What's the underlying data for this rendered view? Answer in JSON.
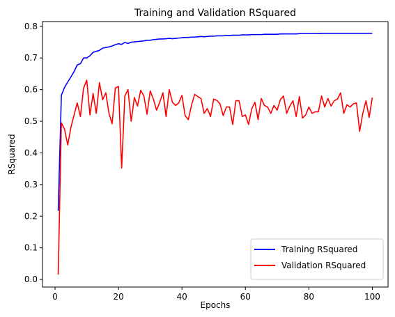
{
  "chart_data": {
    "type": "line",
    "title": "Training and Validation RSquared",
    "xlabel": "Epochs",
    "ylabel": "RSquared",
    "xlim": [
      -3.95,
      104.95
    ],
    "ylim": [
      -0.024,
      0.815
    ],
    "xticks": [
      0,
      20,
      40,
      60,
      80,
      100
    ],
    "yticks": [
      0.0,
      0.1,
      0.2,
      0.3,
      0.4,
      0.5,
      0.6,
      0.7,
      0.8
    ],
    "ytick_labels": [
      "0.0",
      "0.1",
      "0.2",
      "0.3",
      "0.4",
      "0.5",
      "0.6",
      "0.7",
      "0.8"
    ],
    "grid": false,
    "legend_position": "bottom-right",
    "x": [
      1,
      2,
      3,
      4,
      5,
      6,
      7,
      8,
      9,
      10,
      11,
      12,
      13,
      14,
      15,
      16,
      17,
      18,
      19,
      20,
      21,
      22,
      23,
      24,
      25,
      26,
      27,
      28,
      29,
      30,
      31,
      32,
      33,
      34,
      35,
      36,
      37,
      38,
      39,
      40,
      41,
      42,
      43,
      44,
      45,
      46,
      47,
      48,
      49,
      50,
      51,
      52,
      53,
      54,
      55,
      56,
      57,
      58,
      59,
      60,
      61,
      62,
      63,
      64,
      65,
      66,
      67,
      68,
      69,
      70,
      71,
      72,
      73,
      74,
      75,
      76,
      77,
      78,
      79,
      80,
      81,
      82,
      83,
      84,
      85,
      86,
      87,
      88,
      89,
      90,
      91,
      92,
      93,
      94,
      95,
      96,
      97,
      98,
      99,
      100
    ],
    "series": [
      {
        "name": "Training RSquared",
        "color": "#0000ff",
        "values": [
          0.217,
          0.582,
          0.607,
          0.624,
          0.64,
          0.657,
          0.678,
          0.682,
          0.7,
          0.7,
          0.707,
          0.718,
          0.721,
          0.724,
          0.731,
          0.733,
          0.735,
          0.738,
          0.742,
          0.745,
          0.743,
          0.749,
          0.746,
          0.75,
          0.751,
          0.752,
          0.753,
          0.754,
          0.756,
          0.756,
          0.758,
          0.759,
          0.76,
          0.76,
          0.761,
          0.762,
          0.761,
          0.762,
          0.763,
          0.764,
          0.765,
          0.765,
          0.766,
          0.766,
          0.767,
          0.768,
          0.767,
          0.768,
          0.769,
          0.769,
          0.77,
          0.77,
          0.77,
          0.771,
          0.771,
          0.772,
          0.772,
          0.772,
          0.773,
          0.773,
          0.773,
          0.774,
          0.774,
          0.774,
          0.774,
          0.775,
          0.775,
          0.775,
          0.775,
          0.775,
          0.776,
          0.776,
          0.776,
          0.776,
          0.776,
          0.776,
          0.777,
          0.777,
          0.777,
          0.777,
          0.777,
          0.777,
          0.777,
          0.778,
          0.778,
          0.778,
          0.778,
          0.778,
          0.778,
          0.778,
          0.778,
          0.778,
          0.778,
          0.778,
          0.778,
          0.778,
          0.778,
          0.778,
          0.778,
          0.778
        ]
      },
      {
        "name": "Validation RSquared",
        "color": "#ff0000",
        "values": [
          0.015,
          0.495,
          0.475,
          0.425,
          0.48,
          0.52,
          0.558,
          0.515,
          0.605,
          0.63,
          0.52,
          0.588,
          0.525,
          0.622,
          0.568,
          0.59,
          0.525,
          0.492,
          0.605,
          0.61,
          0.352,
          0.58,
          0.6,
          0.5,
          0.575,
          0.548,
          0.598,
          0.58,
          0.522,
          0.596,
          0.57,
          0.535,
          0.56,
          0.59,
          0.515,
          0.6,
          0.56,
          0.55,
          0.558,
          0.582,
          0.518,
          0.505,
          0.55,
          0.585,
          0.578,
          0.572,
          0.525,
          0.54,
          0.515,
          0.57,
          0.566,
          0.555,
          0.518,
          0.545,
          0.545,
          0.49,
          0.565,
          0.565,
          0.515,
          0.52,
          0.49,
          0.54,
          0.56,
          0.505,
          0.572,
          0.55,
          0.545,
          0.525,
          0.55,
          0.535,
          0.568,
          0.58,
          0.525,
          0.548,
          0.565,
          0.515,
          0.578,
          0.51,
          0.52,
          0.545,
          0.525,
          0.53,
          0.53,
          0.58,
          0.545,
          0.572,
          0.548,
          0.565,
          0.57,
          0.59,
          0.525,
          0.552,
          0.545,
          0.555,
          0.558,
          0.468,
          0.525,
          0.565,
          0.512,
          0.575
        ]
      }
    ]
  }
}
